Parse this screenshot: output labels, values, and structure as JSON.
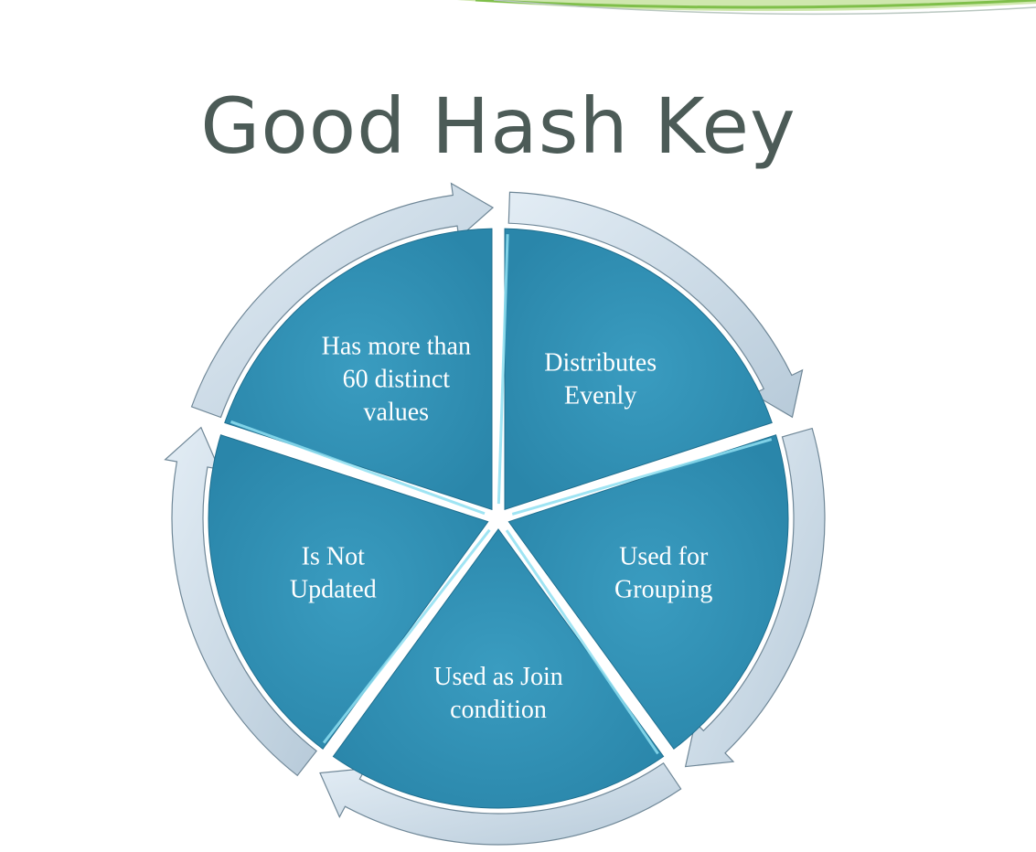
{
  "title": "Good Hash Key",
  "colors": {
    "segment_fill": "#2f8fb3",
    "segment_highlight": "#8fe0f2",
    "arrow_fill": "#c8d8e6",
    "title_color": "#4c5b57",
    "accent_green": "#8cc63f"
  },
  "segments": [
    {
      "lines": [
        "Distributes",
        "Evenly"
      ]
    },
    {
      "lines": [
        "Used for",
        "Grouping"
      ]
    },
    {
      "lines": [
        "Used as Join",
        "condition"
      ]
    },
    {
      "lines": [
        "Is Not",
        "Updated"
      ]
    },
    {
      "lines": [
        "Has more than",
        "60 distinct",
        "values"
      ]
    }
  ]
}
